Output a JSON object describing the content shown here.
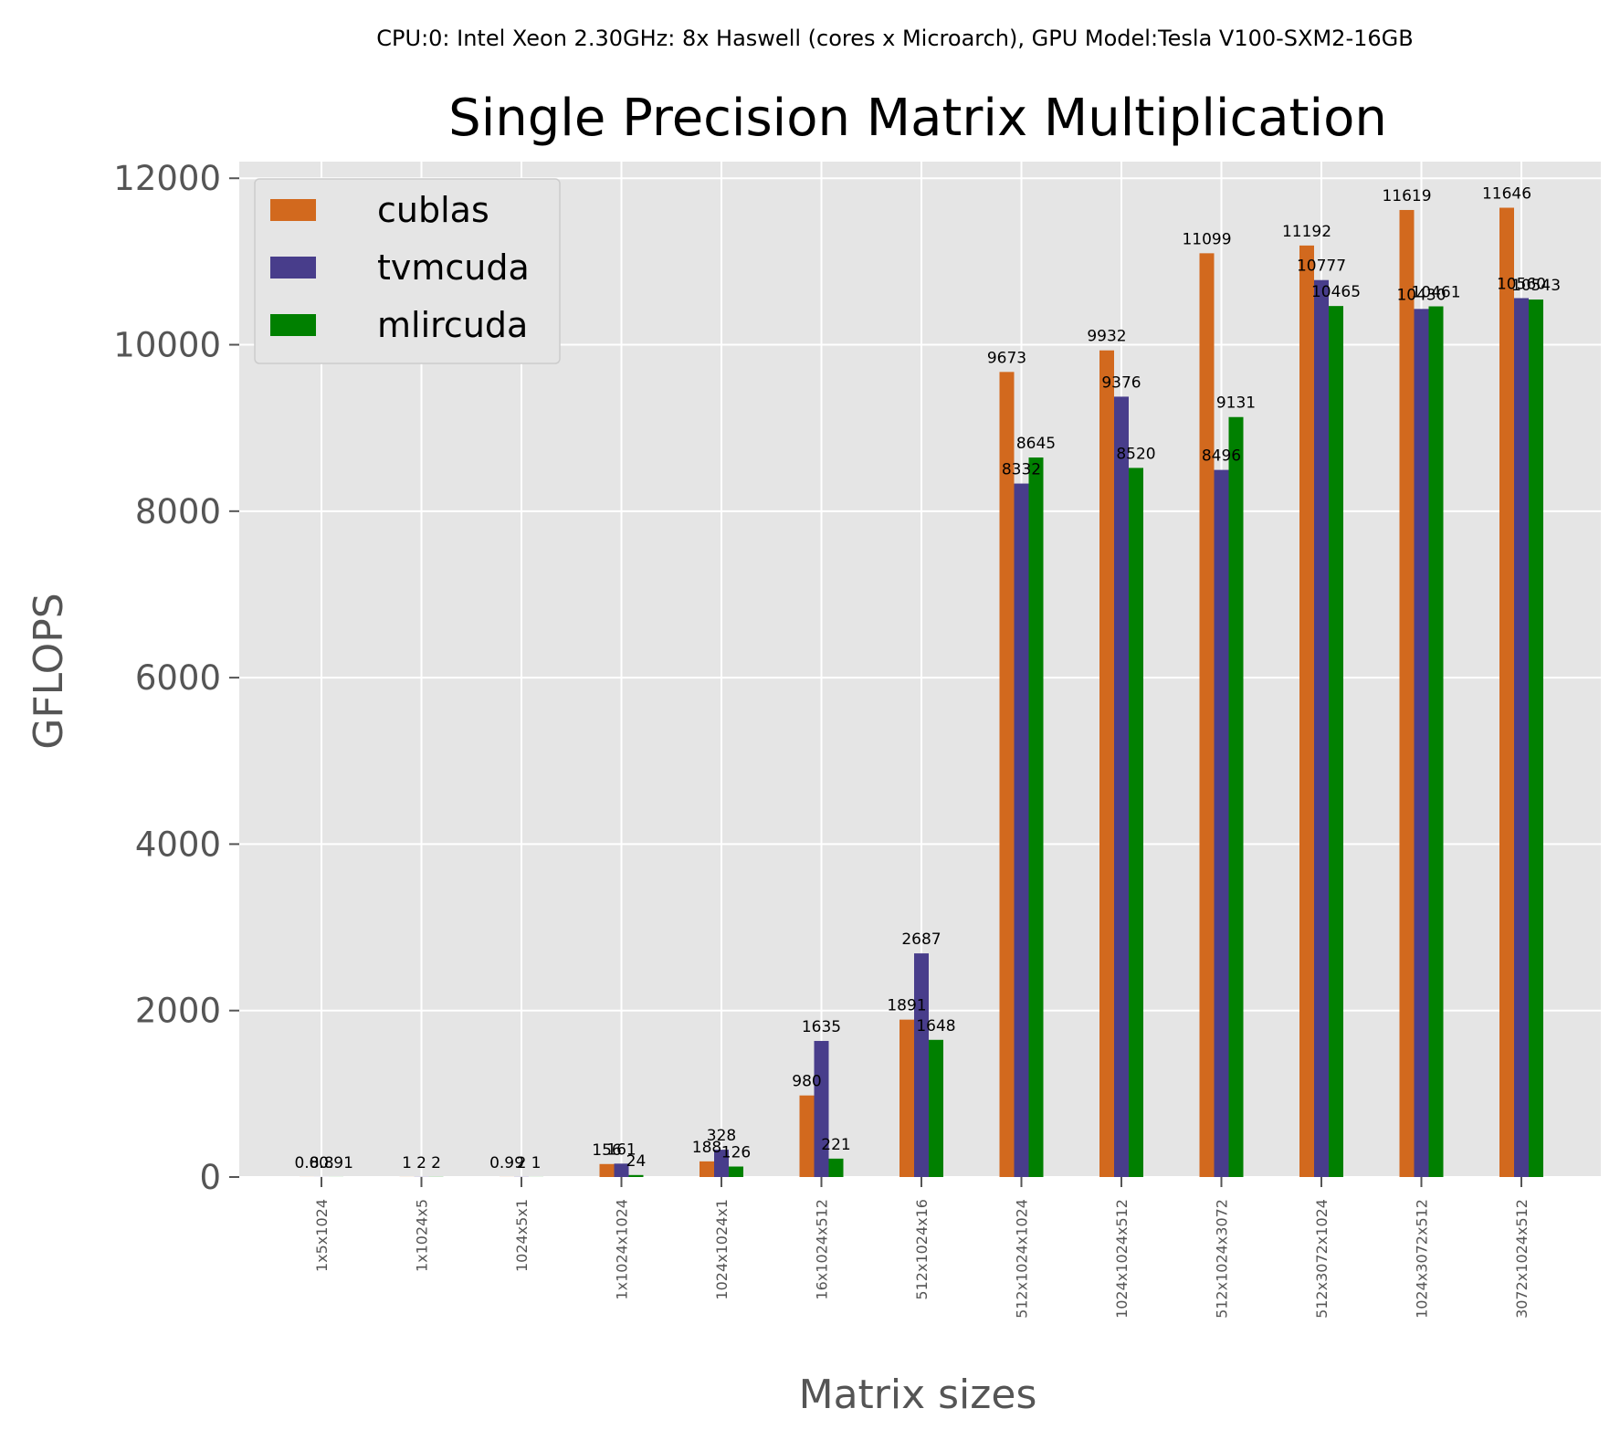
{
  "chart_data": {
    "type": "bar",
    "supertitle": "CPU:0: Intel Xeon 2.30GHz: 8x Haswell (cores x Microarch), GPU Model:Tesla V100-SXM2-16GB",
    "title": "Single Precision Matrix Multiplication",
    "xlabel": "Matrix sizes",
    "ylabel": "GFLOPS",
    "ylim": [
      0,
      12200
    ],
    "yticks": [
      0,
      2000,
      4000,
      6000,
      8000,
      10000,
      12000
    ],
    "ytick_labels": [
      "0",
      "2000",
      "4000",
      "6000",
      "8000",
      "10000",
      "12000"
    ],
    "grid": true,
    "legend_position": "top-left",
    "categories": [
      "1x5x1024",
      "1x1024x5",
      "1024x5x1",
      "1x1024x1024",
      "1024x1024x1",
      "16x1024x512",
      "512x1024x16",
      "512x1024x1024",
      "1024x1024x512",
      "512x1024x3072",
      "512x3072x1024",
      "1024x3072x512",
      "3072x1024x512"
    ],
    "series": [
      {
        "name": "cublas",
        "color": "#d2691e",
        "values": [
          0.8,
          1,
          0.99,
          156,
          188,
          980,
          1891,
          9673,
          9932,
          11099,
          11192,
          11619,
          11646
        ],
        "labels": [
          "0.8",
          "1",
          "0.99",
          "156",
          "188",
          "980",
          "1891",
          "9673",
          "9932",
          "11099",
          "11192",
          "11619",
          "11646"
        ]
      },
      {
        "name": "tvmcuda",
        "color": "#483d8b",
        "values": [
          0.8,
          2,
          2,
          161,
          328,
          1635,
          2687,
          8332,
          9376,
          8496,
          10777,
          10430,
          10560
        ],
        "labels": [
          "0.8",
          "2",
          "2",
          "161",
          "328",
          "1635",
          "2687",
          "8332",
          "9376",
          "8496",
          "10777",
          "10430",
          "10560"
        ]
      },
      {
        "name": "mlircuda",
        "color": "#008000",
        "values": [
          0.91,
          2,
          1,
          24,
          126,
          221,
          1648,
          8645,
          8520,
          9131,
          10465,
          10461,
          10543
        ],
        "labels": [
          "0.91",
          "2",
          "1",
          "24",
          "126",
          "221",
          "1648",
          "8645",
          "8520",
          "9131",
          "10465",
          "10461",
          "10543"
        ]
      }
    ]
  }
}
